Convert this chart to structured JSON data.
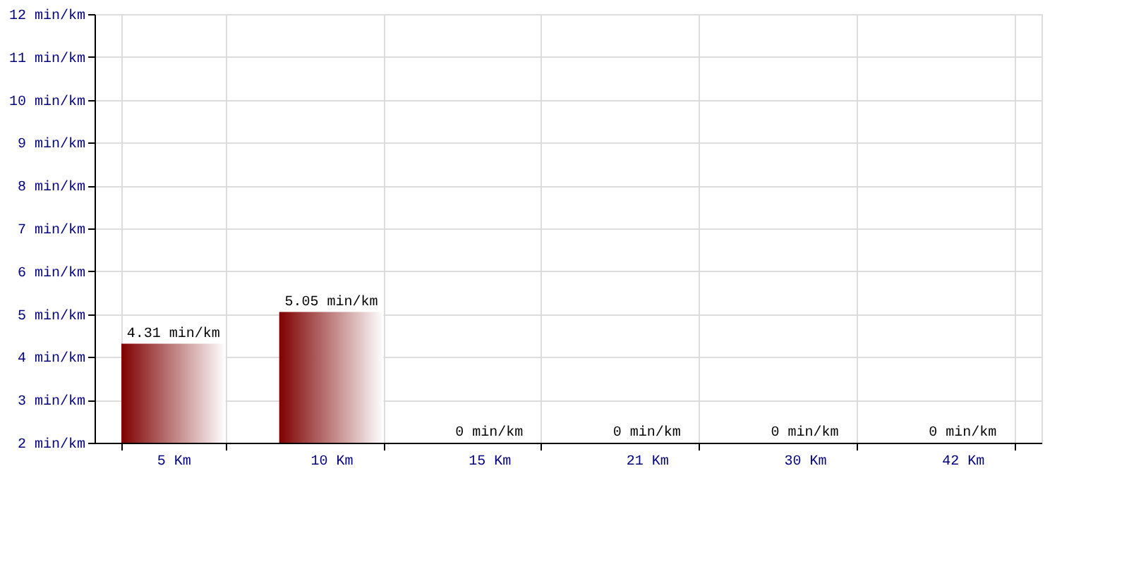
{
  "chart_data": {
    "type": "bar",
    "categories": [
      "5 Km",
      "10 Km",
      "15 Km",
      "21 Km",
      "30 Km",
      "42 Km"
    ],
    "series": [
      {
        "color": "#7f0000",
        "values": [
          4.31,
          5.05,
          null,
          null,
          null,
          null
        ],
        "value_labels": [
          "4.31 min/km",
          "5.05 min/km",
          "0 min/km",
          "0 min/km",
          "0 min/km",
          "0 min/km"
        ]
      }
    ],
    "ylim": [
      2,
      12
    ],
    "yticks": [
      {
        "value": 2,
        "label": "2 min/km"
      },
      {
        "value": 3,
        "label": "3 min/km"
      },
      {
        "value": 4,
        "label": "4 min/km"
      },
      {
        "value": 5,
        "label": "5 min/km"
      },
      {
        "value": 6,
        "label": "6 min/km"
      },
      {
        "value": 7,
        "label": "7 min/km"
      },
      {
        "value": 8,
        "label": "8 min/km"
      },
      {
        "value": 9,
        "label": "9 min/km"
      },
      {
        "value": 10,
        "label": "10 min/km"
      },
      {
        "value": 11,
        "label": "11 min/km"
      },
      {
        "value": 12,
        "label": "12 min/km"
      }
    ],
    "grid": true
  }
}
